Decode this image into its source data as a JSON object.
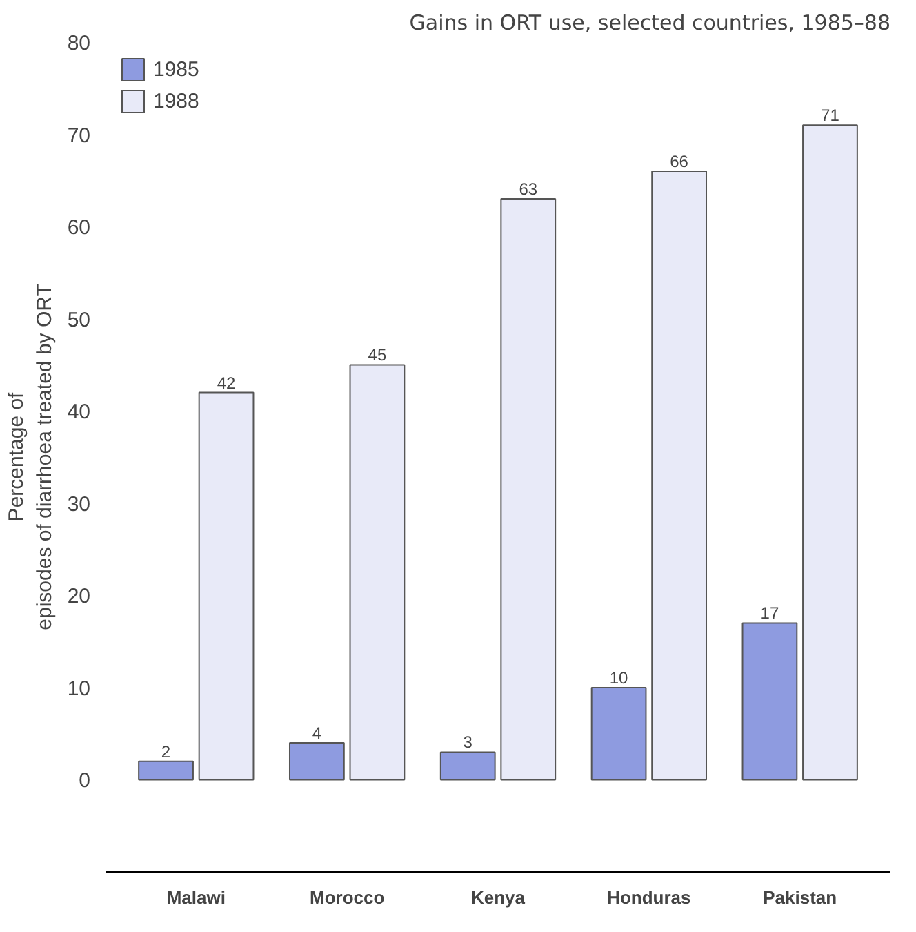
{
  "chart_data": {
    "type": "bar",
    "title": "Gains in ORT use, selected countries, 1985–88",
    "ylabel": "Percentage of\nepisodes of diarrhoea treated by ORT",
    "categories": [
      "Malawi",
      "Morocco",
      "Kenya",
      "Honduras",
      "Pakistan"
    ],
    "series": [
      {
        "name": "1985",
        "color": "#8e9be0",
        "values": [
          2,
          4,
          3,
          10,
          17
        ]
      },
      {
        "name": "1988",
        "color": "#e8eaf8",
        "values": [
          42,
          45,
          63,
          66,
          71
        ]
      }
    ],
    "ylim": [
      -10,
      80
    ],
    "yticks": [
      0,
      10,
      20,
      30,
      40,
      50,
      60,
      70,
      80
    ],
    "data_labels": true,
    "legend": "top left",
    "grid": false
  }
}
